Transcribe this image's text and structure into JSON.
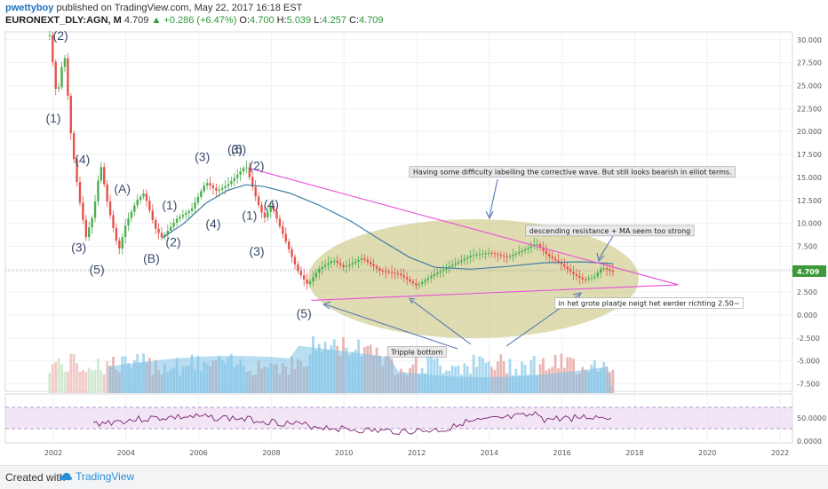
{
  "header": {
    "author": "pwettyboy",
    "published": "published on TradingView.com, May 22, 2017 16:18 EST",
    "symbol": "EURONEXT_DLY:AGN, M",
    "last": "4.709",
    "change": "+0.286 (+6.47%)",
    "o_label": "O:",
    "o": "4.700",
    "h_label": "H:",
    "h": "5.039",
    "l_label": "L:",
    "l": "4.257",
    "c_label": "C:",
    "c": "4.709"
  },
  "footer": {
    "created": "Created with",
    "brand": "TradingView"
  },
  "colors": {
    "up": "#4caf50",
    "down": "#e5534b",
    "ma": "#3f7fa3",
    "trend": "#e84fd8",
    "ellipse": "#c8c47a",
    "volume": "#7fc1e6",
    "rsi": "#7a1f6d"
  },
  "chart_data": {
    "type": "candlestick",
    "x_ticks": [
      "2002",
      "2004",
      "2006",
      "2008",
      "2010",
      "2012",
      "2014",
      "2016",
      "2018",
      "2020",
      "2022"
    ],
    "y_ticks": [
      "30.000",
      "27.500",
      "25.000",
      "22.500",
      "20.000",
      "17.500",
      "15.000",
      "12.500",
      "10.000",
      "7.500",
      "5.000",
      "2.500",
      "0.000",
      "-2.500",
      "-5.000",
      "-7.500"
    ],
    "price_path": [
      [
        2001.9,
        30.5
      ],
      [
        2002.1,
        23.5
      ],
      [
        2002.3,
        28.8
      ],
      [
        2002.5,
        19
      ],
      [
        2002.7,
        13
      ],
      [
        2002.9,
        8.5
      ],
      [
        2003.1,
        11
      ],
      [
        2003.3,
        16.5
      ],
      [
        2003.5,
        12
      ],
      [
        2003.8,
        7
      ],
      [
        2004.0,
        10
      ],
      [
        2004.3,
        12.5
      ],
      [
        2004.5,
        13.3
      ],
      [
        2004.8,
        9.5
      ],
      [
        2005.0,
        8.4
      ],
      [
        2005.4,
        10.5
      ],
      [
        2005.8,
        11.5
      ],
      [
        2006.2,
        14.5
      ],
      [
        2006.5,
        13.5
      ],
      [
        2006.8,
        14.2
      ],
      [
        2007.0,
        15
      ],
      [
        2007.3,
        16.3
      ],
      [
        2007.6,
        12.5
      ],
      [
        2007.8,
        10.5
      ],
      [
        2008.0,
        12
      ],
      [
        2008.2,
        10
      ],
      [
        2008.5,
        7
      ],
      [
        2008.7,
        5
      ],
      [
        2009.0,
        3.3
      ],
      [
        2009.3,
        5
      ],
      [
        2009.7,
        6
      ],
      [
        2010.0,
        5.2
      ],
      [
        2010.5,
        6.2
      ],
      [
        2011.0,
        4.8
      ],
      [
        2011.5,
        4.5
      ],
      [
        2012.0,
        3.2
      ],
      [
        2012.5,
        4.5
      ],
      [
        2013.0,
        5.5
      ],
      [
        2013.5,
        6.5
      ],
      [
        2014.0,
        6.8
      ],
      [
        2014.5,
        6.3
      ],
      [
        2015.0,
        7.2
      ],
      [
        2015.3,
        7.8
      ],
      [
        2015.6,
        6.5
      ],
      [
        2016.0,
        5.5
      ],
      [
        2016.3,
        4.5
      ],
      [
        2016.6,
        3.8
      ],
      [
        2016.9,
        4.2
      ],
      [
        2017.1,
        5.2
      ],
      [
        2017.4,
        4.7
      ]
    ],
    "ma_path": [
      [
        2005.0,
        8.4
      ],
      [
        2005.6,
        10
      ],
      [
        2006.2,
        12.2
      ],
      [
        2006.8,
        13.6
      ],
      [
        2007.3,
        14.2
      ],
      [
        2007.8,
        14
      ],
      [
        2008.5,
        13.3
      ],
      [
        2009.3,
        12
      ],
      [
        2010.2,
        10.2
      ],
      [
        2011.0,
        8.2
      ],
      [
        2011.8,
        6.3
      ],
      [
        2012.5,
        5.2
      ],
      [
        2013.5,
        5
      ],
      [
        2014.5,
        5.3
      ],
      [
        2015.5,
        5.7
      ],
      [
        2016.5,
        5.8
      ],
      [
        2017.4,
        5.6
      ]
    ],
    "trendlines": [
      {
        "from": [
          2007.4,
          16.0
        ],
        "to": [
          2019.2,
          3.3
        ]
      },
      {
        "from": [
          2009.1,
          1.6
        ],
        "to": [
          2019.2,
          3.3
        ]
      }
    ],
    "wave_labels": [
      {
        "text": "(2)",
        "x": 2002.2,
        "y": 30.0
      },
      {
        "text": "(1)",
        "x": 2002.0,
        "y": 21.0
      },
      {
        "text": "(4)",
        "x": 2002.8,
        "y": 16.5
      },
      {
        "text": "(3)",
        "x": 2002.7,
        "y": 6.9
      },
      {
        "text": "(5)",
        "x": 2003.2,
        "y": 4.5
      },
      {
        "text": "(A)",
        "x": 2003.9,
        "y": 13.3
      },
      {
        "text": "(B)",
        "x": 2004.7,
        "y": 5.7
      },
      {
        "text": "(1)",
        "x": 2005.2,
        "y": 11.5
      },
      {
        "text": "(2)",
        "x": 2005.3,
        "y": 7.5
      },
      {
        "text": "(3)",
        "x": 2006.1,
        "y": 16.8
      },
      {
        "text": "(4)",
        "x": 2006.4,
        "y": 9.5
      },
      {
        "text": "(5)",
        "x": 2007.1,
        "y": 17.6
      },
      {
        "text": "(3)",
        "x": 2007.0,
        "y": 17.6
      },
      {
        "text": "(2)",
        "x": 2007.6,
        "y": 15.8
      },
      {
        "text": "(1)",
        "x": 2007.4,
        "y": 10.4
      },
      {
        "text": "(4)",
        "x": 2008.0,
        "y": 11.6
      },
      {
        "text": "(3)",
        "x": 2007.6,
        "y": 6.5
      },
      {
        "text": "(5)",
        "x": 2008.9,
        "y": -0.3
      }
    ],
    "annotations": [
      {
        "text": "Having some difficulty labelling the corrective wave. But still looks bearish in elliot terms.",
        "x": 2011.8,
        "y": 15.6
      },
      {
        "text": "descending resistance + MA seem too strong",
        "x": 2015.0,
        "y": 9.2
      },
      {
        "text": "in het grote plaatje neigt het eerder richting 2.50~",
        "x": 2015.8,
        "y": 1.3
      },
      {
        "text": "Tripple bottom",
        "x": 2011.2,
        "y": -4.0
      }
    ],
    "rsi_ticks": [
      "50.0000",
      "0.0000"
    ],
    "price_tag": "4.709"
  }
}
